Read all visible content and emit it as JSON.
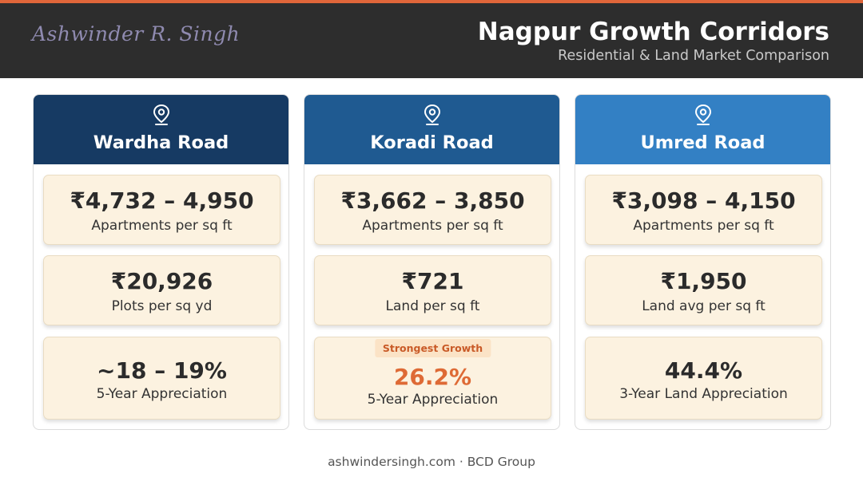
{
  "brand": {
    "accent": "#e0663a",
    "signature": "Ashwinder R. Singh"
  },
  "header": {
    "title": "Nagpur Growth Corridors",
    "subtitle": "Residential & Land Market Comparison"
  },
  "corridors": [
    {
      "name": "Wardha Road",
      "color": "#163a63",
      "icon": "location-pin-icon",
      "stats": [
        {
          "value": "₹4,732 – 4,950",
          "label": "Apartments per sq ft"
        },
        {
          "value": "₹20,926",
          "label": "Plots per sq yd"
        },
        {
          "value": "~18 – 19%",
          "label": "5-Year Appreciation"
        }
      ]
    },
    {
      "name": "Koradi Road",
      "color": "#1f5a91",
      "icon": "location-pin-icon",
      "stats": [
        {
          "value": "₹3,662 – 3,850",
          "label": "Apartments per sq ft"
        },
        {
          "value": "₹721",
          "label": "Land per sq ft"
        },
        {
          "value": "26.2%",
          "label": "5-Year Appreciation",
          "badge": "Strongest Growth",
          "highlight_color": "#de6a35"
        }
      ]
    },
    {
      "name": "Umred Road",
      "color": "#3380c4",
      "icon": "location-pin-icon",
      "stats": [
        {
          "value": "₹3,098 – 4,150",
          "label": "Apartments per sq ft"
        },
        {
          "value": "₹1,950",
          "label": "Land avg per sq ft"
        },
        {
          "value": "44.4%",
          "label": "3-Year Land Appreciation"
        }
      ]
    }
  ],
  "footer": {
    "text": "ashwindersingh.com · BCD Group"
  }
}
